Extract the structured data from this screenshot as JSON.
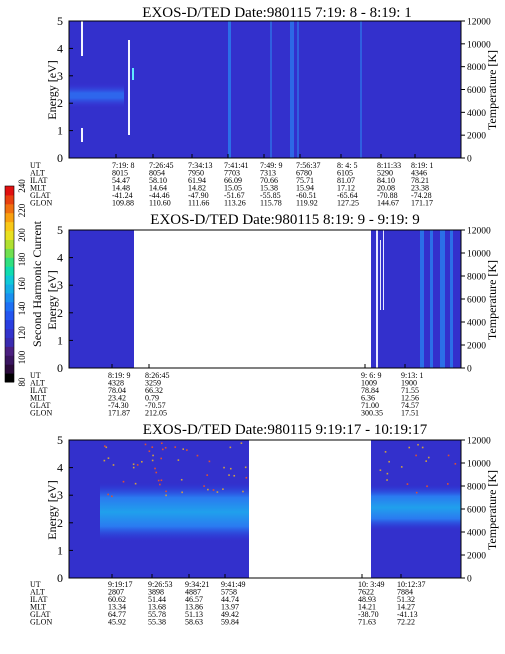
{
  "colorbar": {
    "label": "Second Harmonic Current",
    "ticks": [
      "80",
      "100",
      "120",
      "140",
      "160",
      "180",
      "200",
      "220",
      "240"
    ]
  },
  "ephem_labels": [
    "UT",
    "ALT",
    "ILAT",
    "MLT",
    "GLAT",
    "GLON"
  ],
  "chart_data": [
    {
      "type": "heatmap",
      "title": "EXOS-D/TED   Date:980115  7:19: 8 - 8:19: 1",
      "ylabel": "Energy [eV]",
      "ylabel_right": "Temperature [K]",
      "ylim": [
        0,
        5
      ],
      "yticks": [
        "0",
        "1",
        "2",
        "3",
        "4",
        "5"
      ],
      "ylim_right": [
        0,
        12000
      ],
      "yticks_right": [
        "0",
        "2000",
        "4000",
        "6000",
        "8000",
        "10000",
        "12000"
      ],
      "ephemeris": [
        [
          "7:19: 8",
          "8015",
          "54.47",
          "14.48",
          "-41.24",
          "109.88"
        ],
        [
          "7:26:45",
          "8054",
          "58.10",
          "14.64",
          "-44.46",
          "110.60"
        ],
        [
          "7:34:13",
          "7950",
          "61.94",
          "14.82",
          "-47.90",
          "111.66"
        ],
        [
          "7:41:41",
          "7703",
          "66.09",
          "15.05",
          "-51.67",
          "113.26"
        ],
        [
          "7:49: 9",
          "7313",
          "70.66",
          "15.38",
          "-55.85",
          "115.78"
        ],
        [
          "7:56:37",
          "6780",
          "75.71",
          "15.94",
          "-60.51",
          "119.92"
        ],
        [
          "8: 4: 5",
          "6105",
          "81.07",
          "17.12",
          "-65.64",
          "127.25"
        ],
        [
          "8:11:33",
          "5290",
          "84.10",
          "20.08",
          "-70.88",
          "144.67"
        ],
        [
          "8:19: 1",
          "4346",
          "78.21",
          "23.38",
          "-74.28",
          "171.17"
        ]
      ]
    },
    {
      "type": "heatmap",
      "title": "EXOS-D/TED   Date:980115  8:19: 9 - 9:19: 9",
      "ylabel": "Energy [eV]",
      "ylabel_right": "Temperature [K]",
      "ylim": [
        0,
        5
      ],
      "yticks": [
        "0",
        "1",
        "2",
        "3",
        "4",
        "5"
      ],
      "ylim_right": [
        0,
        12000
      ],
      "yticks_right": [
        "0",
        "2000",
        "4000",
        "6000",
        "8000",
        "10000",
        "12000"
      ],
      "ephemeris": [
        [
          "8:19: 9",
          "4328",
          "78.04",
          "23.42",
          "-74.30",
          "171.87"
        ],
        [
          "8:26:45",
          "3259",
          "66.32",
          "0.79",
          "-70.57",
          "212.05"
        ],
        [
          "9: 6: 9",
          "1009",
          "78.84",
          "6.36",
          "71.00",
          "300.35"
        ],
        [
          "9:13: 1",
          "1900",
          "71.55",
          "12.56",
          "74.57",
          "17.51"
        ]
      ]
    },
    {
      "type": "heatmap",
      "title": "EXOS-D/TED   Date:980115  9:19:17 - 10:19:17",
      "ylabel": "Energy [eV]",
      "ylabel_right": "Temperature [K]",
      "ylim": [
        0,
        5
      ],
      "yticks": [
        "0",
        "1",
        "2",
        "3",
        "4",
        "5"
      ],
      "ylim_right": [
        0,
        12000
      ],
      "yticks_right": [
        "0",
        "2000",
        "4000",
        "6000",
        "8000",
        "10000",
        "12000"
      ],
      "ephemeris": [
        [
          "9:19:17",
          "2807",
          "60.62",
          "13.34",
          "64.77",
          "45.92"
        ],
        [
          "9:26:53",
          "3898",
          "51.44",
          "13.68",
          "55.78",
          "55.38"
        ],
        [
          "9:34:21",
          "4887",
          "46.57",
          "13.86",
          "51.13",
          "58.63"
        ],
        [
          "9:41:49",
          "5758",
          "44.74",
          "13.97",
          "49.42",
          "59.84"
        ],
        [
          "10: 3:49",
          "7622",
          "48.93",
          "14.21",
          "-38.70",
          "71.63"
        ],
        [
          "10:12:37",
          "7884",
          "51.32",
          "14.27",
          "-41.13",
          "72.22"
        ]
      ]
    }
  ]
}
